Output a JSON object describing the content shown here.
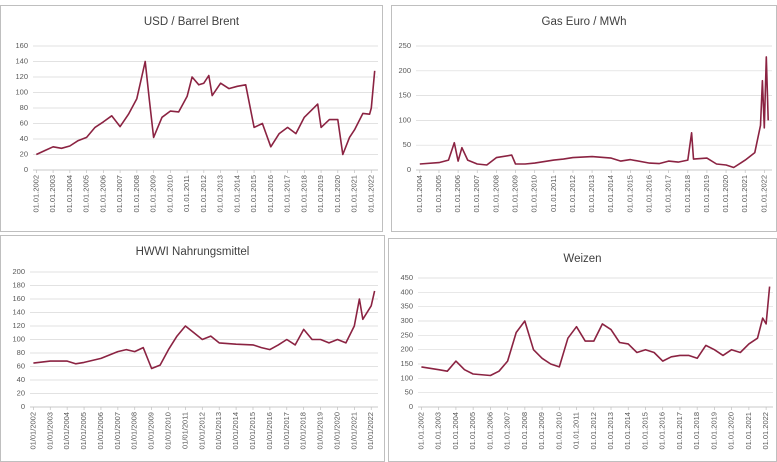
{
  "chart_data": [
    {
      "type": "line",
      "title": "USD / Barrel Brent",
      "color": "#8b2342",
      "x": [
        2002,
        2002.5,
        2003,
        2003.5,
        2004,
        2004.5,
        2005,
        2005.5,
        2006,
        2006.5,
        2007,
        2007.5,
        2008,
        2008.5,
        2008.75,
        2009,
        2009.5,
        2010,
        2010.5,
        2011,
        2011.3,
        2011.7,
        2012,
        2012.3,
        2012.5,
        2013,
        2013.5,
        2014,
        2014.5,
        2015,
        2015.5,
        2016,
        2016.5,
        2017,
        2017.5,
        2018,
        2018.8,
        2019,
        2019.5,
        2020,
        2020.3,
        2020.7,
        2021,
        2021.5,
        2021.9,
        2022,
        2022.2
      ],
      "values": [
        20,
        25,
        30,
        28,
        31,
        38,
        42,
        55,
        62,
        70,
        56,
        72,
        92,
        140,
        90,
        42,
        68,
        76,
        75,
        95,
        120,
        110,
        112,
        122,
        96,
        112,
        105,
        108,
        110,
        55,
        60,
        30,
        47,
        55,
        47,
        68,
        85,
        55,
        65,
        65,
        20,
        42,
        52,
        73,
        72,
        80,
        128
      ],
      "xlim": [
        2001.8,
        2022.4
      ],
      "ylim": [
        0,
        160
      ],
      "yticks": [
        0,
        20,
        40,
        60,
        80,
        100,
        120,
        140,
        160
      ],
      "xticks": [
        {
          "value": 2002,
          "label": "01.01.2002"
        },
        {
          "value": 2003,
          "label": "01.01.2003"
        },
        {
          "value": 2004,
          "label": "01.01.2004"
        },
        {
          "value": 2005,
          "label": "01.01.2005"
        },
        {
          "value": 2006,
          "label": "01.01.2006"
        },
        {
          "value": 2007,
          "label": "01.01.2007"
        },
        {
          "value": 2008,
          "label": "01.01.2008"
        },
        {
          "value": 2009,
          "label": "01.01.2009"
        },
        {
          "value": 2010,
          "label": "01.01.2010"
        },
        {
          "value": 2011,
          "label": "01.01.2011"
        },
        {
          "value": 2012,
          "label": "01.01.2012"
        },
        {
          "value": 2013,
          "label": "01.01.2013"
        },
        {
          "value": 2014,
          "label": "01.01.2014"
        },
        {
          "value": 2015,
          "label": "01.01.2015"
        },
        {
          "value": 2016,
          "label": "01.01.2016"
        },
        {
          "value": 2017,
          "label": "01.01.2017"
        },
        {
          "value": 2018,
          "label": "01.01.2018"
        },
        {
          "value": 2019,
          "label": "01.01.2019"
        },
        {
          "value": 2020,
          "label": "01.01.2020"
        },
        {
          "value": 2021,
          "label": "01.01.2021"
        },
        {
          "value": 2022,
          "label": "01.01.2022"
        }
      ],
      "grid": true
    },
    {
      "type": "line",
      "title": "Gas Euro / MWh",
      "color": "#8b2342",
      "x": [
        2004,
        2005,
        2005.5,
        2005.8,
        2006,
        2006.2,
        2006.5,
        2007,
        2007.5,
        2008,
        2008.8,
        2009,
        2009.5,
        2010,
        2011,
        2011.5,
        2012,
        2013,
        2014,
        2014.5,
        2015,
        2016,
        2016.5,
        2017,
        2017.5,
        2018,
        2018.2,
        2018.3,
        2019,
        2019.5,
        2020,
        2020.4,
        2020.8,
        2021,
        2021.5,
        2021.8,
        2021.9,
        2022,
        2022.1,
        2022.2
      ],
      "values": [
        12,
        15,
        20,
        55,
        18,
        45,
        20,
        12,
        10,
        25,
        30,
        12,
        12,
        14,
        20,
        22,
        25,
        27,
        24,
        18,
        21,
        14,
        13,
        18,
        16,
        20,
        75,
        22,
        24,
        12,
        10,
        5,
        15,
        20,
        35,
        90,
        180,
        85,
        228,
        100
      ],
      "xlim": [
        2003.8,
        2022.4
      ],
      "ylim": [
        0,
        250
      ],
      "yticks": [
        0,
        50,
        100,
        150,
        200,
        250
      ],
      "xticks": [
        {
          "value": 2004,
          "label": "01.01.2004"
        },
        {
          "value": 2005,
          "label": "01.01.2005"
        },
        {
          "value": 2006,
          "label": "01.01.2006"
        },
        {
          "value": 2007,
          "label": "01.01.2007"
        },
        {
          "value": 2008,
          "label": "01.01.2008"
        },
        {
          "value": 2009,
          "label": "01.01.2009"
        },
        {
          "value": 2010,
          "label": "01.01.2010"
        },
        {
          "value": 2011,
          "label": "01.01.2011"
        },
        {
          "value": 2012,
          "label": "01.01.2012"
        },
        {
          "value": 2013,
          "label": "01.01.2013"
        },
        {
          "value": 2014,
          "label": "01.01.2014"
        },
        {
          "value": 2015,
          "label": "01.01.2015"
        },
        {
          "value": 2016,
          "label": "01.01.2016"
        },
        {
          "value": 2017,
          "label": "01.01.2017"
        },
        {
          "value": 2018,
          "label": "01.01.2018"
        },
        {
          "value": 2019,
          "label": "01.01.2019"
        },
        {
          "value": 2020,
          "label": "01.01.2020"
        },
        {
          "value": 2021,
          "label": "01.01.2021"
        },
        {
          "value": 2022,
          "label": "01.01.2022"
        }
      ],
      "grid": true
    },
    {
      "type": "line",
      "title": "HWWI Nahrungsmittel",
      "color": "#8b2342",
      "x": [
        2002,
        2003,
        2004,
        2004.5,
        2005,
        2006,
        2007,
        2007.5,
        2008,
        2008.5,
        2009,
        2009.5,
        2010,
        2010.5,
        2011,
        2011.5,
        2012,
        2012.5,
        2013,
        2014,
        2015,
        2015.5,
        2016,
        2016.5,
        2017,
        2017.5,
        2018,
        2018.5,
        2019,
        2019.5,
        2020,
        2020.5,
        2021,
        2021.3,
        2021.5,
        2022,
        2022.2
      ],
      "values": [
        65,
        68,
        68,
        64,
        66,
        72,
        82,
        85,
        82,
        88,
        57,
        62,
        85,
        105,
        120,
        110,
        100,
        105,
        95,
        93,
        92,
        88,
        85,
        92,
        100,
        92,
        115,
        100,
        100,
        95,
        100,
        95,
        120,
        160,
        130,
        150,
        172
      ],
      "xlim": [
        2001.8,
        2022.4
      ],
      "ylim": [
        0,
        200
      ],
      "yticks": [
        0,
        20,
        40,
        60,
        80,
        100,
        120,
        140,
        160,
        180,
        200
      ],
      "xticks": [
        {
          "value": 2002,
          "label": "01/01/2002"
        },
        {
          "value": 2003,
          "label": "01/01/2003"
        },
        {
          "value": 2004,
          "label": "01/01/2004"
        },
        {
          "value": 2005,
          "label": "01/01/2005"
        },
        {
          "value": 2006,
          "label": "01/01/2006"
        },
        {
          "value": 2007,
          "label": "01/01/2007"
        },
        {
          "value": 2008,
          "label": "01/01/2008"
        },
        {
          "value": 2009,
          "label": "01/01/2009"
        },
        {
          "value": 2010,
          "label": "01/01/2010"
        },
        {
          "value": 2011,
          "label": "01/01/2011"
        },
        {
          "value": 2012,
          "label": "01/01/2012"
        },
        {
          "value": 2013,
          "label": "01/01/2013"
        },
        {
          "value": 2014,
          "label": "01/01/2014"
        },
        {
          "value": 2015,
          "label": "01/01/2015"
        },
        {
          "value": 2016,
          "label": "01/01/2016"
        },
        {
          "value": 2017,
          "label": "01/01/2017"
        },
        {
          "value": 2018,
          "label": "01/01/2018"
        },
        {
          "value": 2019,
          "label": "01/01/2019"
        },
        {
          "value": 2020,
          "label": "01/01/2020"
        },
        {
          "value": 2021,
          "label": "01/01/2021"
        },
        {
          "value": 2022,
          "label": "01/01/2022"
        }
      ],
      "grid": true
    },
    {
      "type": "line",
      "title": "Weizen",
      "color": "#8b2342",
      "x": [
        2002,
        2003,
        2003.5,
        2004,
        2004.5,
        2005,
        2006,
        2006.5,
        2007,
        2007.5,
        2008,
        2008.5,
        2009,
        2009.5,
        2010,
        2010.5,
        2011,
        2011.5,
        2012,
        2012.5,
        2013,
        2013.5,
        2014,
        2014.5,
        2015,
        2015.5,
        2016,
        2016.5,
        2017,
        2017.5,
        2018,
        2018.5,
        2019,
        2019.5,
        2020,
        2020.5,
        2021,
        2021.5,
        2021.8,
        2022,
        2022.2
      ],
      "values": [
        140,
        130,
        125,
        160,
        130,
        115,
        110,
        125,
        160,
        260,
        300,
        200,
        170,
        150,
        140,
        240,
        280,
        230,
        230,
        290,
        270,
        225,
        220,
        190,
        200,
        190,
        160,
        175,
        180,
        180,
        170,
        215,
        200,
        180,
        200,
        190,
        220,
        240,
        310,
        290,
        420
      ],
      "xlim": [
        2001.8,
        2022.4
      ],
      "ylim": [
        0,
        450
      ],
      "yticks": [
        0,
        50,
        100,
        150,
        200,
        250,
        300,
        350,
        400,
        450
      ],
      "xticks": [
        {
          "value": 2002,
          "label": "01.01.2002"
        },
        {
          "value": 2003,
          "label": "01.01.2003"
        },
        {
          "value": 2004,
          "label": "01.01.2004"
        },
        {
          "value": 2005,
          "label": "01.01.2005"
        },
        {
          "value": 2006,
          "label": "01.01.2006"
        },
        {
          "value": 2007,
          "label": "01.01.2007"
        },
        {
          "value": 2008,
          "label": "01.01.2008"
        },
        {
          "value": 2009,
          "label": "01.01.2009"
        },
        {
          "value": 2010,
          "label": "01.01.2010"
        },
        {
          "value": 2011,
          "label": "01.01.2011"
        },
        {
          "value": 2012,
          "label": "01.01.2012"
        },
        {
          "value": 2013,
          "label": "01.01.2013"
        },
        {
          "value": 2014,
          "label": "01.01.2014"
        },
        {
          "value": 2015,
          "label": "01.01.2015"
        },
        {
          "value": 2016,
          "label": "01.01.2016"
        },
        {
          "value": 2017,
          "label": "01.01.2017"
        },
        {
          "value": 2018,
          "label": "01.01.2018"
        },
        {
          "value": 2019,
          "label": "01.01.2019"
        },
        {
          "value": 2020,
          "label": "01.01.2020"
        },
        {
          "value": 2021,
          "label": "01.01.2021"
        },
        {
          "value": 2022,
          "label": "01.01.2022"
        }
      ],
      "grid": true
    }
  ]
}
